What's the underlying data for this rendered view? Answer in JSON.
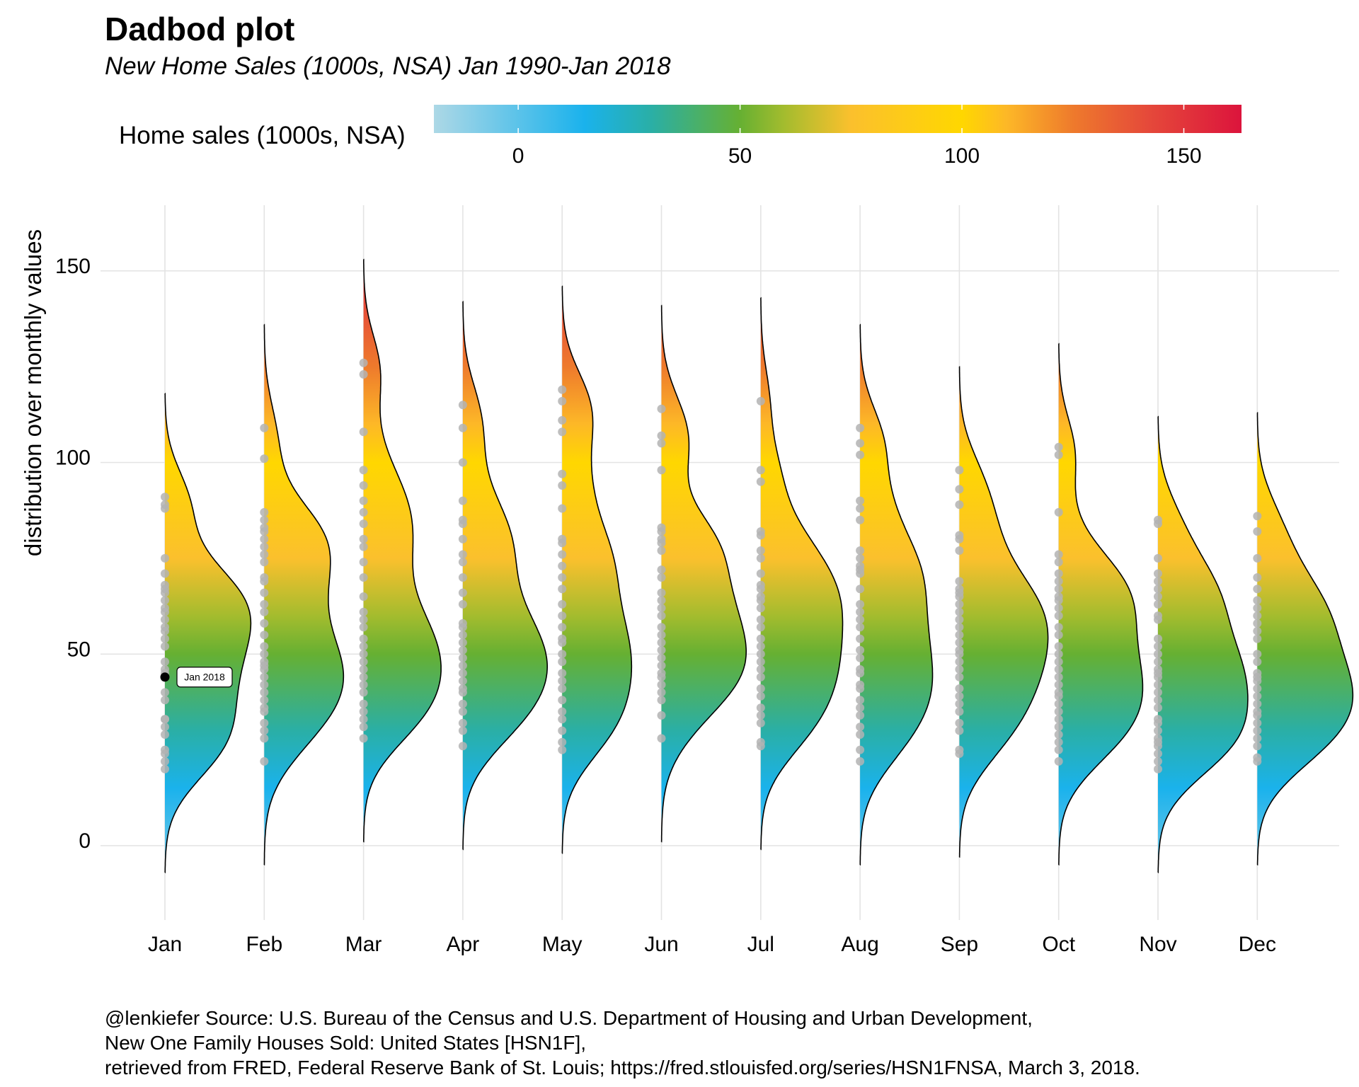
{
  "chart_data": {
    "type": "violin",
    "title": "Dadbod plot",
    "subtitle": "New Home Sales (1000s, NSA) Jan 1990-Jan 2018",
    "xlabel": "",
    "ylabel": "distribution over monthly values",
    "ylim": [
      -20,
      167
    ],
    "y_ticks": [
      0,
      50,
      100,
      150
    ],
    "grid": true,
    "legend": {
      "title": "Home sales (1000s, NSA)",
      "type": "colorbar",
      "placement": "top",
      "range": [
        -19,
        163
      ],
      "ticks": [
        0,
        50,
        100,
        150
      ],
      "colors": [
        {
          "value": -19,
          "color": "#ADD8E6"
        },
        {
          "value": 15,
          "color": "#1AB2EC"
        },
        {
          "value": 30,
          "color": "#2AAFA6"
        },
        {
          "value": 50,
          "color": "#66B032"
        },
        {
          "value": 60,
          "color": "#A4BC2E"
        },
        {
          "value": 75,
          "color": "#FBC02D"
        },
        {
          "value": 100,
          "color": "#FFD700"
        },
        {
          "value": 110,
          "color": "#FDB827"
        },
        {
          "value": 125,
          "color": "#EE7A2C"
        },
        {
          "value": 142,
          "color": "#E5493A"
        },
        {
          "value": 163,
          "color": "#DC143C"
        }
      ]
    },
    "categories": [
      "Jan",
      "Feb",
      "Mar",
      "Apr",
      "May",
      "Jun",
      "Jul",
      "Aug",
      "Sep",
      "Oct",
      "Nov",
      "Dec"
    ],
    "series": [
      {
        "month": "Jan",
        "values": [
          20,
          22,
          24,
          25,
          29,
          31,
          33,
          33,
          38,
          40,
          44,
          45,
          46,
          48,
          52,
          54,
          56,
          57,
          59,
          61,
          62,
          64,
          66,
          67,
          68,
          71,
          75,
          88,
          89,
          91
        ]
      },
      {
        "month": "Feb",
        "values": [
          22,
          28,
          30,
          32,
          35,
          36,
          38,
          40,
          42,
          44,
          46,
          47,
          48,
          50,
          52,
          55,
          58,
          61,
          63,
          66,
          69,
          70,
          74,
          76,
          78,
          80,
          82,
          83,
          85,
          87,
          101,
          109
        ]
      },
      {
        "month": "Mar",
        "values": [
          28,
          31,
          33,
          35,
          37,
          40,
          42,
          44,
          46,
          48,
          50,
          52,
          54,
          57,
          59,
          61,
          65,
          70,
          74,
          78,
          80,
          84,
          87,
          90,
          94,
          98,
          108,
          123,
          126
        ]
      },
      {
        "month": "Apr",
        "values": [
          26,
          30,
          32,
          35,
          37,
          40,
          41,
          43,
          45,
          47,
          49,
          51,
          53,
          55,
          57,
          58,
          63,
          66,
          70,
          74,
          76,
          80,
          84,
          85,
          90,
          100,
          109,
          115
        ]
      },
      {
        "month": "May",
        "values": [
          25,
          27,
          30,
          33,
          35,
          38,
          41,
          43,
          45,
          48,
          50,
          53,
          54,
          57,
          60,
          63,
          67,
          70,
          73,
          76,
          79,
          80,
          88,
          94,
          97,
          108,
          111,
          116,
          119
        ]
      },
      {
        "month": "Jun",
        "values": [
          28,
          34,
          38,
          40,
          42,
          44,
          45,
          47,
          49,
          51,
          53,
          55,
          57,
          60,
          62,
          64,
          66,
          70,
          72,
          77,
          79,
          80,
          82,
          83,
          98,
          105,
          107,
          114
        ]
      },
      {
        "month": "Jul",
        "values": [
          26,
          27,
          32,
          34,
          36,
          39,
          41,
          44,
          46,
          48,
          50,
          52,
          54,
          57,
          59,
          62,
          64,
          65,
          67,
          68,
          71,
          75,
          77,
          81,
          82,
          95,
          98,
          116
        ]
      },
      {
        "month": "Aug",
        "values": [
          22,
          25,
          29,
          31,
          34,
          36,
          38,
          41,
          42,
          45,
          46,
          49,
          51,
          54,
          57,
          59,
          61,
          63,
          67,
          71,
          72,
          73,
          75,
          77,
          85,
          88,
          90,
          102,
          105,
          109
        ]
      },
      {
        "month": "Sep",
        "values": [
          24,
          25,
          30,
          32,
          35,
          37,
          39,
          41,
          44,
          46,
          48,
          50,
          51,
          53,
          55,
          57,
          59,
          61,
          63,
          65,
          66,
          67,
          69,
          77,
          80,
          81,
          89,
          93,
          98
        ]
      },
      {
        "month": "Oct",
        "values": [
          22,
          25,
          27,
          29,
          31,
          33,
          35,
          37,
          39,
          40,
          42,
          44,
          46,
          48,
          50,
          52,
          55,
          57,
          60,
          62,
          64,
          65,
          67,
          69,
          71,
          74,
          76,
          87,
          102,
          104
        ]
      },
      {
        "month": "Nov",
        "values": [
          20,
          22,
          24,
          26,
          27,
          28,
          30,
          32,
          33,
          36,
          38,
          40,
          42,
          44,
          45,
          46,
          48,
          50,
          52,
          54,
          59,
          60,
          63,
          65,
          67,
          69,
          71,
          75,
          84,
          85
        ]
      },
      {
        "month": "Dec",
        "values": [
          22,
          23,
          26,
          28,
          30,
          32,
          34,
          35,
          37,
          39,
          41,
          43,
          44,
          45,
          48,
          50,
          54,
          56,
          58,
          60,
          62,
          64,
          67,
          70,
          75,
          82,
          86
        ]
      }
    ],
    "highlight": {
      "month": "Jan",
      "value": 44,
      "label": "Jan 2018"
    }
  },
  "caption_lines": [
    "@lenkiefer Source: U.S. Bureau of the Census and U.S. Department of Housing and Urban Development,",
    "New One Family Houses Sold: United States [HSN1F],",
    "retrieved from FRED, Federal Reserve Bank of St. Louis; https://fred.stlouisfed.org/series/HSN1FNSA, March 3, 2018."
  ]
}
